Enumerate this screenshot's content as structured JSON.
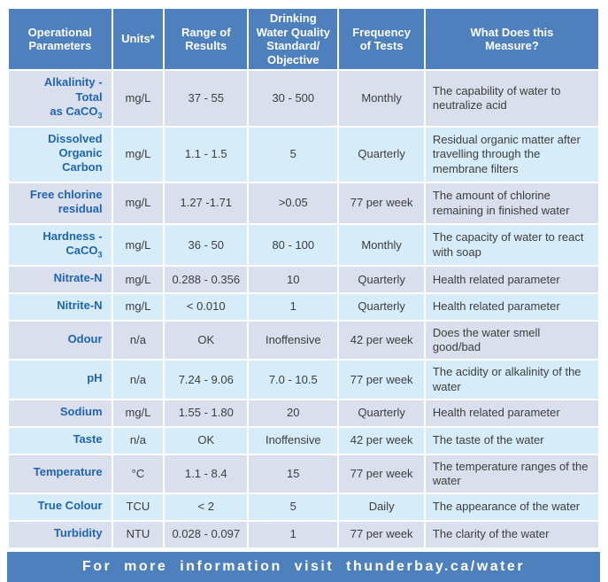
{
  "colors": {
    "header_footer_blue": "#4d80bc",
    "row_odd_bg": "#dadfee",
    "row_even_bg": "#d6ecf8",
    "parameter_text_blue": "#2065ae",
    "body_text": "#3d3d3d",
    "gridline_white": "#ffffff"
  },
  "table": {
    "headers": {
      "parameters": "Operational\nParameters",
      "units": "Units*",
      "range": "Range of\nResults",
      "standard": "Drinking\nWater Quality\nStandard/\nObjective",
      "frequency": "Frequency\nof Tests",
      "measure": "What Does this\nMeasure?"
    },
    "rows": [
      {
        "param": "Alkalinity - Total\nas CaCO",
        "param_sub": "3",
        "units": "mg/L",
        "range": "37 - 55",
        "standard": "30 - 500",
        "frequency": "Monthly",
        "measure": "The capability of water to neutralize acid"
      },
      {
        "param": "Dissolved\nOrganic Carbon",
        "units": "mg/L",
        "range": "1.1 - 1.5",
        "standard": "5",
        "frequency": "Quarterly",
        "measure": "Residual organic matter after travelling through the membrane filters"
      },
      {
        "param": "Free chlorine\nresidual",
        "units": "mg/L",
        "range": "1.27 -1.71",
        "standard": ">0.05",
        "frequency": "77 per week",
        "measure": "The amount of chlorine remaining in finished water"
      },
      {
        "param": "Hardness -\nCaCO",
        "param_sub": "3",
        "units": "mg/L",
        "range": "36 - 50",
        "standard": "80 - 100",
        "frequency": "Monthly",
        "measure": "The capacity of water to react with soap"
      },
      {
        "param": "Nitrate-N",
        "units": "mg/L",
        "range": "0.288 - 0.356",
        "standard": "10",
        "frequency": "Quarterly",
        "measure": "Health related parameter"
      },
      {
        "param": "Nitrite-N",
        "units": "mg/L",
        "range": "< 0.010",
        "standard": "1",
        "frequency": "Quarterly",
        "measure": "Health related parameter"
      },
      {
        "param": "Odour",
        "units": "n/a",
        "range": "OK",
        "standard": "Inoffensive",
        "frequency": "42 per week",
        "measure": "Does the water smell good/bad"
      },
      {
        "param": "pH",
        "units": "n/a",
        "range": "7.24 - 9.06",
        "standard": "7.0 - 10.5",
        "frequency": "77 per week",
        "measure": "The acidity or alkalinity of the water"
      },
      {
        "param": "Sodium",
        "units": "mg/L",
        "range": "1.55 - 1.80",
        "standard": "20",
        "frequency": "Quarterly",
        "measure": "Health related parameter"
      },
      {
        "param": "Taste",
        "units": "n/a",
        "range": "OK",
        "standard": "Inoffensive",
        "frequency": "42 per week",
        "measure": "The taste of the water"
      },
      {
        "param": "Temperature",
        "units": "°C",
        "range": "1.1 - 8.4",
        "standard": "15",
        "frequency": "77 per week",
        "measure": "The temperature ranges of the water"
      },
      {
        "param": "True Colour",
        "units": "TCU",
        "range": "< 2",
        "standard": "5",
        "frequency": "Daily",
        "measure": "The appearance of the water"
      },
      {
        "param": "Turbidity",
        "units": "NTU",
        "range": "0.028 - 0.097",
        "standard": "1",
        "frequency": "77 per week",
        "measure": "The clarity of the water"
      }
    ]
  },
  "footer": {
    "text": "For more information visit thunderbay.ca/water"
  }
}
